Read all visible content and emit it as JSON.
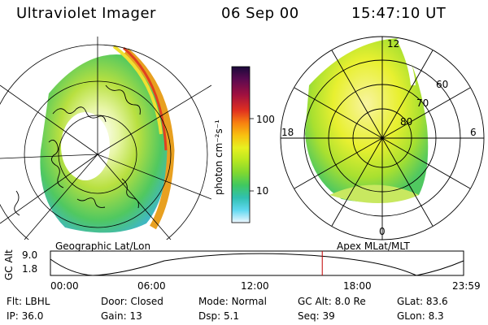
{
  "header": {
    "instrument": "Ultraviolet Imager",
    "date": "06 Sep 00",
    "time": "15:47:10 UT"
  },
  "colorbar": {
    "unit_label": "photon cm⁻²s⁻¹",
    "tick_labels": [
      "100",
      "10"
    ],
    "colors": [
      "#1a0a3a",
      "#5a0a50",
      "#a01040",
      "#e03020",
      "#f88010",
      "#f8c010",
      "#e8f020",
      "#b8e820",
      "#80d830",
      "#40c860",
      "#30c0b0",
      "#60d8f0",
      "#c0f0ff",
      "#f0f8ff"
    ]
  },
  "left_map": {
    "label": "Geographic Lat/Lon"
  },
  "right_map": {
    "label": "Apex  MLat/MLT",
    "mlt_labels": {
      "top": "12",
      "left": "18",
      "right": "6",
      "bottom": "0"
    },
    "lat_labels": [
      "60",
      "70",
      "80"
    ]
  },
  "altitude_plot": {
    "ylabel": "GC Alt",
    "y_ticks": [
      "9.0",
      "1.8"
    ],
    "x_ticks": [
      "00:00",
      "06:00",
      "12:00",
      "18:00",
      "23:59"
    ],
    "current_time_marker_hours": 15.79,
    "marker_color": "#c00000"
  },
  "info": {
    "row1": [
      {
        "label": "Flt:",
        "value": "LBHL"
      },
      {
        "label": "Door:",
        "value": "Closed"
      },
      {
        "label": "Mode:",
        "value": "Normal"
      },
      {
        "label": "GC Alt:",
        "value": "8.0 Re"
      },
      {
        "label": "GLat:",
        "value": "83.6"
      }
    ],
    "row2": [
      {
        "label": "IP:",
        "value": "36.0"
      },
      {
        "label": "Gain:",
        "value": "13"
      },
      {
        "label": "Dsp:",
        "value": "5.1"
      },
      {
        "label": "Seq:",
        "value": "39"
      },
      {
        "label": "GLon:",
        "value": "8.3"
      }
    ]
  }
}
